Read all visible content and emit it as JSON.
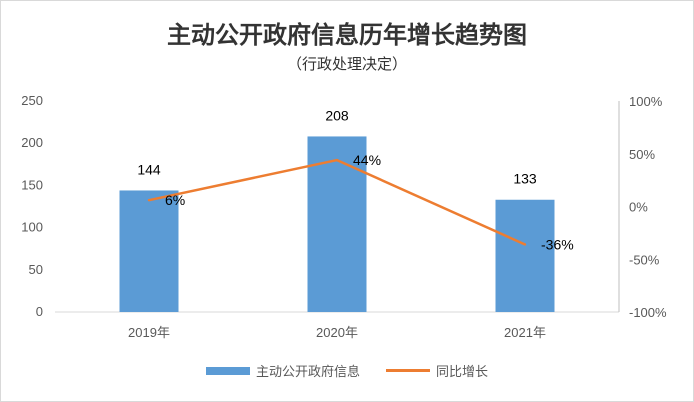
{
  "chart_data": {
    "type": "bar",
    "title": "主动公开政府信息历年增长趋势图",
    "subtitle": "（行政处理决定）",
    "categories": [
      "2019年",
      "2020年",
      "2021年"
    ],
    "series": [
      {
        "name": "主动公开政府信息",
        "type": "bar",
        "values": [
          144,
          208,
          133
        ],
        "labels": [
          "144",
          "208",
          "133"
        ],
        "color": "#5b9bd5"
      },
      {
        "name": "同比增长",
        "type": "line",
        "axis": "secondary",
        "values": [
          6,
          44,
          -36
        ],
        "labels": [
          "6%",
          "44%",
          "-36%"
        ],
        "color": "#ed7d31"
      }
    ],
    "ylim": [
      0,
      250
    ],
    "yticks": [
      "0",
      "50",
      "100",
      "150",
      "200",
      "250"
    ],
    "y2lim": [
      -100,
      100
    ],
    "y2ticks": [
      "-100%",
      "-50%",
      "0%",
      "50%",
      "100%"
    ],
    "legend_position": "bottom",
    "grid": false
  }
}
